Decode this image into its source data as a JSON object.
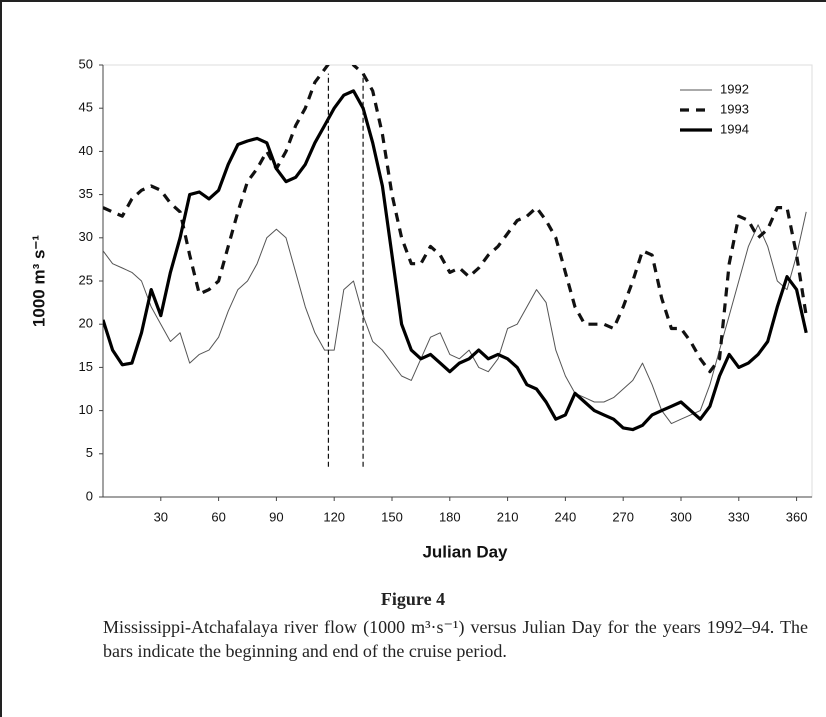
{
  "chart_data": {
    "type": "line",
    "xlabel": "Julian Day",
    "ylabel": "1000 m³ s⁻¹",
    "figure_label": "Figure 4",
    "caption": "Mississippi-Atchafalaya river flow (1000 m³·s⁻¹) versus Julian Day for the years 1992–94. The bars indicate the beginning and end of the cruise period.",
    "xlim": [
      0,
      368
    ],
    "ylim": [
      0,
      50
    ],
    "xticks": [
      30,
      60,
      90,
      120,
      150,
      180,
      210,
      240,
      270,
      300,
      330,
      360
    ],
    "yticks": [
      0,
      5,
      10,
      15,
      20,
      25,
      30,
      35,
      40,
      45,
      50
    ],
    "legend": "upper right",
    "cruise_bars": [
      117,
      135
    ],
    "cruise_bar_ylim": [
      3.5,
      49
    ],
    "x": [
      0,
      5,
      10,
      15,
      20,
      25,
      30,
      35,
      40,
      45,
      50,
      55,
      60,
      65,
      70,
      75,
      80,
      85,
      90,
      95,
      100,
      105,
      110,
      115,
      120,
      125,
      130,
      135,
      140,
      145,
      150,
      155,
      160,
      165,
      170,
      175,
      180,
      185,
      190,
      195,
      200,
      205,
      210,
      215,
      220,
      225,
      230,
      235,
      240,
      245,
      250,
      255,
      260,
      265,
      270,
      275,
      280,
      285,
      290,
      295,
      300,
      305,
      310,
      315,
      320,
      325,
      330,
      335,
      340,
      345,
      350,
      355,
      360,
      365
    ],
    "series": [
      {
        "name": "1992",
        "color": "#555555",
        "style": "thin",
        "values": [
          28.5,
          27,
          26.5,
          26,
          25,
          22,
          20,
          18,
          19,
          15.5,
          16.5,
          17,
          18.5,
          21.5,
          24,
          25,
          27,
          30,
          31,
          30,
          26,
          22,
          19,
          17,
          17,
          24,
          25,
          21,
          18,
          17,
          15.5,
          14,
          13.5,
          16,
          18.5,
          19,
          16.5,
          16,
          17,
          15,
          14.5,
          16,
          19.5,
          20,
          22,
          24,
          22.5,
          17,
          14,
          12,
          11.5,
          11,
          11,
          11.5,
          12.5,
          13.5,
          15.5,
          13,
          10,
          8.5,
          9,
          9.5,
          10,
          13,
          17,
          21,
          25,
          29,
          31.5,
          29,
          25,
          24,
          28,
          33
        ]
      },
      {
        "name": "1993",
        "color": "#111111",
        "style": "dashed",
        "values": [
          33.5,
          33,
          32.5,
          34.5,
          35.5,
          36,
          35.5,
          34,
          33,
          28,
          23.5,
          24,
          25,
          29,
          33,
          36.5,
          38,
          40,
          38,
          40,
          43,
          45,
          48,
          49.5,
          51,
          52,
          50,
          49,
          47,
          42,
          35,
          30,
          27,
          27,
          29,
          28,
          26,
          26.5,
          25.5,
          26.5,
          28,
          29,
          30.5,
          32,
          32.5,
          33.5,
          32,
          30,
          26,
          22,
          20,
          20,
          20,
          19.5,
          22,
          25,
          28.5,
          28,
          23,
          19.5,
          19.5,
          18,
          16,
          14.5,
          16,
          27,
          32.5,
          32,
          30,
          31,
          33.5,
          33.5,
          28,
          21
        ]
      },
      {
        "name": "1994",
        "color": "#000000",
        "style": "thick",
        "values": [
          20.5,
          17,
          15.3,
          15.5,
          19,
          24,
          21,
          26,
          30,
          35,
          35.3,
          34.5,
          35.5,
          38.5,
          40.8,
          41.2,
          41.5,
          41,
          38,
          36.5,
          37,
          38.5,
          41,
          43,
          45,
          46.5,
          47,
          45,
          41,
          36,
          28,
          20,
          17,
          16,
          16.5,
          15.5,
          14.5,
          15.5,
          16,
          17,
          16,
          16.5,
          16,
          15,
          13,
          12.5,
          11,
          9,
          9.5,
          12,
          11,
          10,
          9.5,
          9,
          8,
          7.8,
          8.3,
          9.5,
          10,
          10.5,
          11,
          10,
          9,
          10.5,
          14,
          16.5,
          15,
          15.5,
          16.5,
          18,
          22,
          25.5,
          24,
          19
        ]
      }
    ]
  }
}
